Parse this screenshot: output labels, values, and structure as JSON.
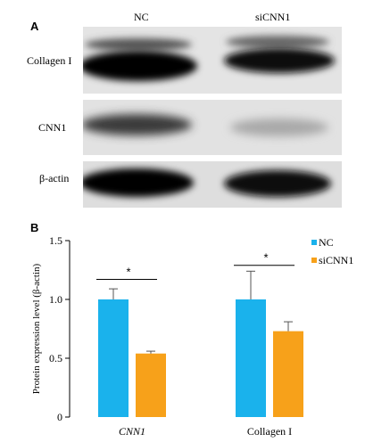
{
  "panelA": {
    "letter": "A",
    "lanes": [
      "NC",
      "siCNN1"
    ],
    "rows": [
      {
        "label": "Collagen I",
        "intensity": [
          1.0,
          0.74
        ]
      },
      {
        "label": "CNN1",
        "intensity": [
          1.0,
          0.54
        ]
      },
      {
        "label": "β-actin",
        "intensity": [
          1.0,
          1.0
        ]
      }
    ]
  },
  "panelB": {
    "letter": "B"
  },
  "chart_data": {
    "type": "bar",
    "categories": [
      "CNN1",
      "Collagen I"
    ],
    "series": [
      {
        "name": "NC",
        "values": [
          1.0,
          1.0
        ],
        "errors": [
          0.09,
          0.24
        ],
        "color": "#1ab2ec"
      },
      {
        "name": "siCNN1",
        "values": [
          0.54,
          0.73
        ],
        "errors": [
          0.02,
          0.08
        ],
        "color": "#f7a11a"
      }
    ],
    "ylabel": "Protein expression level (β-actin)",
    "ylim": [
      0,
      1.5
    ],
    "yticks": [
      "0",
      "0.5",
      "1.0",
      "1.5"
    ],
    "significance": [
      "*",
      "*"
    ],
    "legend_position": "top-right",
    "grid": false
  }
}
